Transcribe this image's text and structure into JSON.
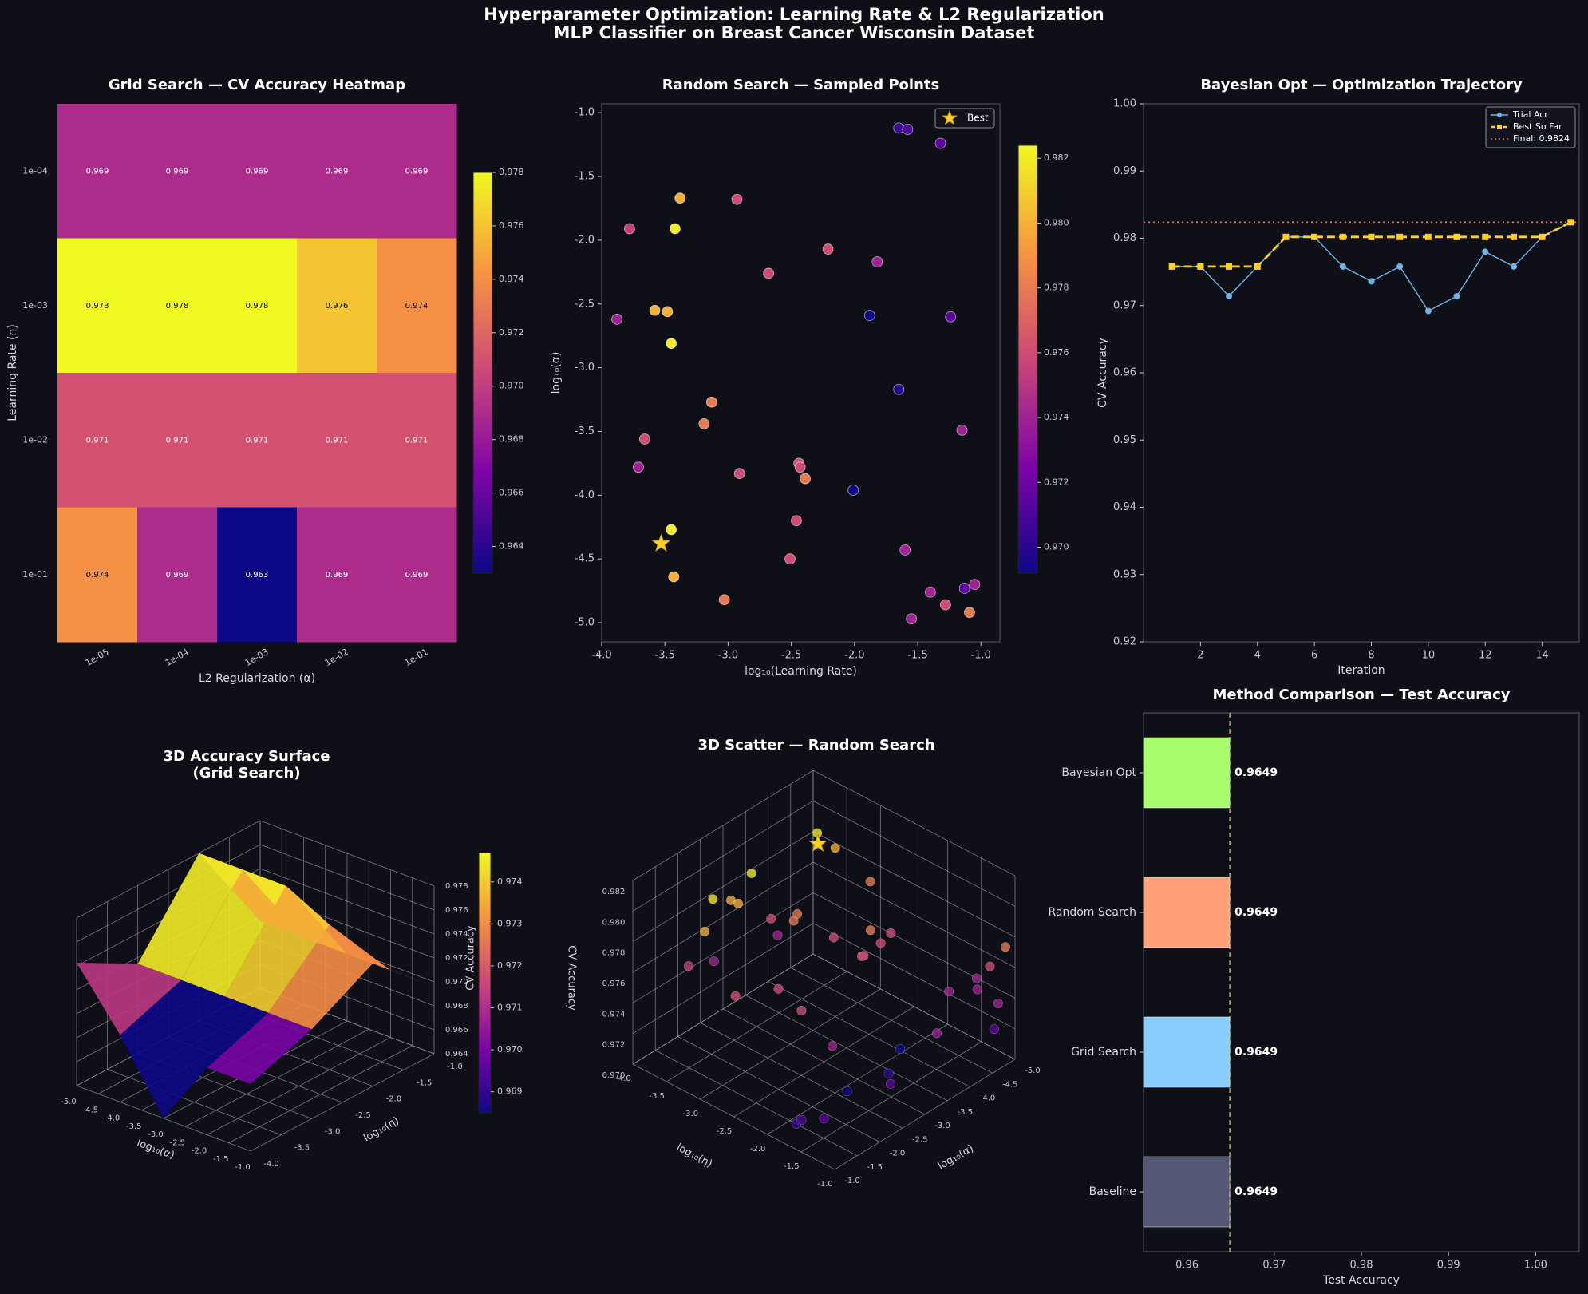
{
  "figure": {
    "title_line1": "Hyperparameter Optimization: Learning Rate & L2 Regularization",
    "title_line2": "MLP Classifier on Breast Cancer Wisconsin Dataset"
  },
  "colors": {
    "background": "#0e0f17",
    "text": "#ffffff",
    "tick_text": "#c8c8d0",
    "grid_bayes_trial": "#6cb4e4",
    "best_so_far": "#ffd21f",
    "final_line": "#ff6b6b",
    "bar_bayesian": "#a6ff6a",
    "bar_random": "#ffa07a",
    "bar_grid": "#87ceff",
    "bar_baseline": "#545775"
  },
  "chart_data": [
    {
      "id": "heatmap",
      "type": "heatmap",
      "title": "Grid Search — CV Accuracy Heatmap",
      "xlabel": "L2 Regularization (α)",
      "ylabel": "Learning Rate (η)",
      "x_categories": [
        "1e-05",
        "1e-04",
        "1e-03",
        "1e-02",
        "1e-01"
      ],
      "y_categories": [
        "1e-04",
        "1e-03",
        "1e-02",
        "1e-01"
      ],
      "values": [
        [
          0.969,
          0.969,
          0.969,
          0.969,
          0.969
        ],
        [
          0.978,
          0.978,
          0.978,
          0.976,
          0.974
        ],
        [
          0.971,
          0.971,
          0.971,
          0.971,
          0.971
        ],
        [
          0.974,
          0.969,
          0.963,
          0.969,
          0.969
        ]
      ],
      "colormap": "plasma",
      "colorbar": {
        "range": [
          0.963,
          0.978
        ],
        "ticks": [
          0.964,
          0.966,
          0.968,
          0.97,
          0.972,
          0.974,
          0.976,
          0.978
        ]
      }
    },
    {
      "id": "random_scatter",
      "type": "scatter",
      "title": "Random Search — Sampled Points",
      "xlabel": "log₁₀(Learning Rate)",
      "ylabel": "log₁₀(α)",
      "xlim": [
        -4.0,
        -0.85
      ],
      "ylim": [
        -5.15,
        -0.93
      ],
      "xticks": [
        -4.0,
        -3.5,
        -3.0,
        -2.5,
        -2.0,
        -1.5,
        -1.0
      ],
      "yticks": [
        -5.0,
        -4.5,
        -4.0,
        -3.5,
        -3.0,
        -2.5,
        -2.0,
        -1.5,
        -1.0
      ],
      "legend": "Best",
      "legend_position": "top-right",
      "colormap": "plasma",
      "colorbar": {
        "range": [
          0.9692,
          0.9824
        ],
        "ticks": [
          0.97,
          0.972,
          0.974,
          0.976,
          0.978,
          0.98,
          0.982
        ]
      },
      "points": [
        [
          -1.65,
          -1.12,
          0.9705
        ],
        [
          -1.58,
          -1.13,
          0.971
        ],
        [
          -1.32,
          -1.24,
          0.9716
        ],
        [
          -3.38,
          -1.67,
          0.98
        ],
        [
          -2.93,
          -1.68,
          0.976
        ],
        [
          -3.78,
          -1.91,
          0.9755
        ],
        [
          -3.42,
          -1.91,
          0.982
        ],
        [
          -2.21,
          -2.07,
          0.976
        ],
        [
          -1.82,
          -2.17,
          0.974
        ],
        [
          -2.68,
          -2.26,
          0.976
        ],
        [
          -3.58,
          -2.55,
          0.98
        ],
        [
          -3.48,
          -2.56,
          0.98
        ],
        [
          -3.88,
          -2.62,
          0.974
        ],
        [
          -1.88,
          -2.59,
          0.9692
        ],
        [
          -1.24,
          -2.6,
          0.9716
        ],
        [
          -3.45,
          -2.81,
          0.982
        ],
        [
          -1.65,
          -3.17,
          0.97
        ],
        [
          -3.13,
          -3.27,
          0.978
        ],
        [
          -3.19,
          -3.44,
          0.978
        ],
        [
          -1.15,
          -3.49,
          0.974
        ],
        [
          -3.66,
          -3.56,
          0.976
        ],
        [
          -3.71,
          -3.78,
          0.974
        ],
        [
          -2.44,
          -3.75,
          0.976
        ],
        [
          -2.43,
          -3.78,
          0.976
        ],
        [
          -2.91,
          -3.83,
          0.976
        ],
        [
          -2.39,
          -3.87,
          0.978
        ],
        [
          -2.01,
          -3.96,
          0.9692
        ],
        [
          -2.46,
          -4.2,
          0.976
        ],
        [
          -3.45,
          -4.27,
          0.982
        ],
        [
          -1.6,
          -4.43,
          0.974
        ],
        [
          -2.51,
          -4.5,
          0.976
        ],
        [
          -3.43,
          -4.64,
          0.98
        ],
        [
          -1.4,
          -4.76,
          0.974
        ],
        [
          -1.13,
          -4.73,
          0.9716
        ],
        [
          -1.05,
          -4.7,
          0.974
        ],
        [
          -3.03,
          -4.82,
          0.978
        ],
        [
          -1.28,
          -4.86,
          0.976
        ],
        [
          -1.09,
          -4.92,
          0.978
        ],
        [
          -1.55,
          -4.97,
          0.974
        ]
      ],
      "best": [
        -3.53,
        -4.38
      ]
    },
    {
      "id": "bayes_trajectory",
      "type": "line",
      "title": "Bayesian Opt — Optimization Trajectory",
      "xlabel": "Iteration",
      "ylabel": "CV Accuracy",
      "xlim": [
        0.0,
        15.3
      ],
      "ylim": [
        0.92,
        1.0
      ],
      "xticks": [
        2,
        4,
        6,
        8,
        10,
        12,
        14
      ],
      "yticks": [
        0.92,
        0.93,
        0.94,
        0.95,
        0.96,
        0.97,
        0.98,
        0.99,
        1.0
      ],
      "x": [
        1,
        2,
        3,
        4,
        5,
        6,
        7,
        8,
        9,
        10,
        11,
        12,
        13,
        14,
        15
      ],
      "series": [
        {
          "name": "Trial Acc",
          "values": [
            0.9758,
            0.9758,
            0.9714,
            0.9758,
            0.9802,
            0.9802,
            0.9758,
            0.9736,
            0.9758,
            0.9692,
            0.9714,
            0.978,
            0.9758,
            0.9802,
            0.9824
          ]
        },
        {
          "name": "Best So Far",
          "values": [
            0.9758,
            0.9758,
            0.9758,
            0.9758,
            0.9802,
            0.9802,
            0.9802,
            0.9802,
            0.9802,
            0.9802,
            0.9802,
            0.9802,
            0.9802,
            0.9802,
            0.9824
          ]
        }
      ],
      "hline": {
        "name": "Final: 0.9824",
        "value": 0.9824
      },
      "legend_position": "top-right"
    },
    {
      "id": "surface3d",
      "type": "surface",
      "title_line1": "3D Accuracy Surface",
      "title_line2": "(Grid Search)",
      "xlabel": "log₁₀(α)",
      "ylabel": "log₁₀(η)",
      "zlabel": "CV Accuracy",
      "xticks": [
        -5.0,
        -4.5,
        -4.0,
        -3.5,
        -3.0,
        -2.5,
        -2.0,
        -1.5,
        -1.0
      ],
      "yticks": [
        -4.0,
        -3.5,
        -3.0,
        -2.5,
        -2.0,
        -1.5,
        -1.0
      ],
      "zticks": [
        0.964,
        0.966,
        0.968,
        0.97,
        0.972,
        0.974,
        0.976,
        0.978
      ],
      "colorbar": {
        "range": [
          0.9685,
          0.9747
        ],
        "ticks": [
          0.969,
          0.97,
          0.971,
          0.972,
          0.973,
          0.974
        ]
      }
    },
    {
      "id": "scatter3d",
      "type": "scatter",
      "title": "3D Scatter — Random Search",
      "xlabel": "log₁₀(η)",
      "ylabel": "log₁₀(α)",
      "zlabel": "CV Accuracy",
      "xticks": [
        -4.0,
        -3.5,
        -3.0,
        -2.5,
        -2.0,
        -1.5,
        -1.0
      ],
      "yticks": [
        -5.0,
        -4.5,
        -4.0,
        -3.5,
        -3.0,
        -2.5,
        -2.0,
        -1.5,
        -1.0
      ],
      "zticks": [
        0.97,
        0.972,
        0.974,
        0.976,
        0.978,
        0.98,
        0.982
      ]
    },
    {
      "id": "method_bars",
      "type": "bar",
      "orientation": "horizontal",
      "title": "Method Comparison — Test Accuracy",
      "xlabel": "Test Accuracy",
      "xlim": [
        0.955,
        1.005
      ],
      "xticks": [
        0.96,
        0.97,
        0.98,
        0.99,
        1.0
      ],
      "categories": [
        "Bayesian Opt",
        "Random Search",
        "Grid Search",
        "Baseline"
      ],
      "values": [
        0.9649,
        0.9649,
        0.9649,
        0.9649
      ],
      "value_labels": [
        "0.9649",
        "0.9649",
        "0.9649",
        "0.9649"
      ],
      "reference_line": 0.9649
    }
  ]
}
